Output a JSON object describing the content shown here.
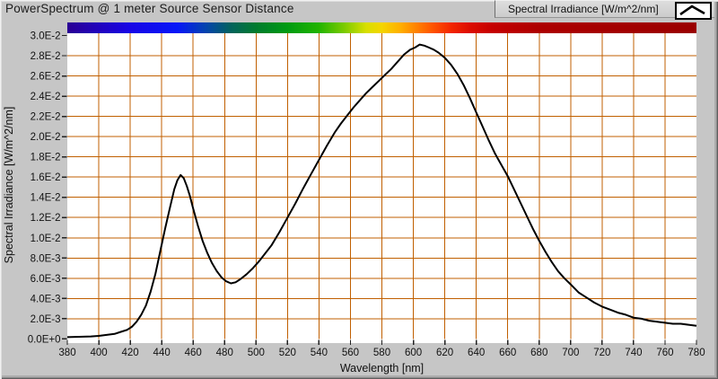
{
  "window": {
    "title": "PowerSpectrum @ 1 meter Source Sensor Distance"
  },
  "legend": {
    "label": "Spectral Irradiance [W/m^2/nm]",
    "sample_icon": "line-sample-caret-icon"
  },
  "colors": {
    "window_bg": "#c6c6c6",
    "plot_bg": "#ffffff",
    "grid": "#c05f00",
    "curve": "#000000",
    "tick": "#222222",
    "text": "#111111"
  },
  "chart_data": {
    "type": "line",
    "title": "PowerSpectrum @ 1 meter Source Sensor Distance",
    "xlabel": "Wavelength [nm]",
    "ylabel": "Spectral Irradiance [W/m^2/nm]",
    "xlim": [
      380,
      780
    ],
    "ylim": [
      0,
      0.03
    ],
    "grid": true,
    "legend_position": "top-right",
    "x_ticks": [
      {
        "value": 380,
        "label": "380"
      },
      {
        "value": 400,
        "label": "400"
      },
      {
        "value": 420,
        "label": "420"
      },
      {
        "value": 440,
        "label": "440"
      },
      {
        "value": 460,
        "label": "460"
      },
      {
        "value": 480,
        "label": "480"
      },
      {
        "value": 500,
        "label": "500"
      },
      {
        "value": 520,
        "label": "520"
      },
      {
        "value": 540,
        "label": "540"
      },
      {
        "value": 560,
        "label": "560"
      },
      {
        "value": 580,
        "label": "580"
      },
      {
        "value": 600,
        "label": "600"
      },
      {
        "value": 620,
        "label": "620"
      },
      {
        "value": 640,
        "label": "640"
      },
      {
        "value": 660,
        "label": "660"
      },
      {
        "value": 680,
        "label": "680"
      },
      {
        "value": 700,
        "label": "700"
      },
      {
        "value": 720,
        "label": "720"
      },
      {
        "value": 740,
        "label": "740"
      },
      {
        "value": 760,
        "label": "760"
      },
      {
        "value": 780,
        "label": "780"
      }
    ],
    "y_ticks": [
      {
        "value": 0.0,
        "label": "0.0E+0"
      },
      {
        "value": 0.002,
        "label": "2.0E-3"
      },
      {
        "value": 0.004,
        "label": "4.0E-3"
      },
      {
        "value": 0.006,
        "label": "6.0E-3"
      },
      {
        "value": 0.008,
        "label": "8.0E-3"
      },
      {
        "value": 0.01,
        "label": "1.0E-2"
      },
      {
        "value": 0.012,
        "label": "1.2E-2"
      },
      {
        "value": 0.014,
        "label": "1.4E-2"
      },
      {
        "value": 0.016,
        "label": "1.6E-2"
      },
      {
        "value": 0.018,
        "label": "1.8E-2"
      },
      {
        "value": 0.02,
        "label": "2.0E-2"
      },
      {
        "value": 0.022,
        "label": "2.2E-2"
      },
      {
        "value": 0.024,
        "label": "2.4E-2"
      },
      {
        "value": 0.026,
        "label": "2.6E-2"
      },
      {
        "value": 0.028,
        "label": "2.8E-2"
      },
      {
        "value": 0.03,
        "label": "3.0E-2"
      }
    ],
    "colorbar": {
      "description": "visible-spectrum color ramp along top of plot, 380-780 nm",
      "stops": [
        {
          "pos": 0.0,
          "color": "#2a0094"
        },
        {
          "pos": 0.1,
          "color": "#1805e6"
        },
        {
          "pos": 0.175,
          "color": "#0617f8"
        },
        {
          "pos": 0.22,
          "color": "#0343ae"
        },
        {
          "pos": 0.26,
          "color": "#02635c"
        },
        {
          "pos": 0.3,
          "color": "#017b2e"
        },
        {
          "pos": 0.35,
          "color": "#009b12"
        },
        {
          "pos": 0.4,
          "color": "#22b400"
        },
        {
          "pos": 0.44,
          "color": "#7bcb00"
        },
        {
          "pos": 0.475,
          "color": "#d8df00"
        },
        {
          "pos": 0.5,
          "color": "#f4d500"
        },
        {
          "pos": 0.53,
          "color": "#ffae00"
        },
        {
          "pos": 0.55,
          "color": "#ff8a00"
        },
        {
          "pos": 0.58,
          "color": "#ff5500"
        },
        {
          "pos": 0.61,
          "color": "#f32600"
        },
        {
          "pos": 0.64,
          "color": "#dc0c00"
        },
        {
          "pos": 0.675,
          "color": "#c60000"
        },
        {
          "pos": 0.75,
          "color": "#ad0000"
        },
        {
          "pos": 1.0,
          "color": "#9a0000"
        }
      ]
    },
    "series": [
      {
        "name": "Spectral Irradiance [W/m^2/nm]",
        "points": [
          [
            380,
            0.00018
          ],
          [
            385,
            0.0002
          ],
          [
            390,
            0.00022
          ],
          [
            395,
            0.00025
          ],
          [
            400,
            0.0003
          ],
          [
            405,
            0.0004
          ],
          [
            410,
            0.0005
          ],
          [
            414,
            0.0007
          ],
          [
            418,
            0.0009
          ],
          [
            421,
            0.0012
          ],
          [
            424,
            0.0017
          ],
          [
            427,
            0.0024
          ],
          [
            430,
            0.0033
          ],
          [
            433,
            0.0047
          ],
          [
            436,
            0.0064
          ],
          [
            439,
            0.0086
          ],
          [
            442,
            0.0108
          ],
          [
            445,
            0.0128
          ],
          [
            448,
            0.0148
          ],
          [
            450,
            0.0157
          ],
          [
            452,
            0.0162
          ],
          [
            454,
            0.0159
          ],
          [
            456,
            0.0151
          ],
          [
            458,
            0.0141
          ],
          [
            460,
            0.0129
          ],
          [
            463,
            0.0112
          ],
          [
            466,
            0.0097
          ],
          [
            469,
            0.0085
          ],
          [
            472,
            0.0075
          ],
          [
            475,
            0.0067
          ],
          [
            478,
            0.0061
          ],
          [
            481,
            0.0057
          ],
          [
            484,
            0.0055
          ],
          [
            487,
            0.0056
          ],
          [
            490,
            0.0059
          ],
          [
            494,
            0.0064
          ],
          [
            498,
            0.007
          ],
          [
            502,
            0.0077
          ],
          [
            506,
            0.0085
          ],
          [
            510,
            0.0093
          ],
          [
            515,
            0.0106
          ],
          [
            520,
            0.012
          ],
          [
            525,
            0.0134
          ],
          [
            530,
            0.0149
          ],
          [
            535,
            0.0163
          ],
          [
            540,
            0.0177
          ],
          [
            545,
            0.0191
          ],
          [
            550,
            0.0204
          ],
          [
            554,
            0.0213
          ],
          [
            558,
            0.0221
          ],
          [
            562,
            0.0229
          ],
          [
            566,
            0.0236
          ],
          [
            570,
            0.0243
          ],
          [
            574,
            0.0249
          ],
          [
            578,
            0.0255
          ],
          [
            582,
            0.0261
          ],
          [
            586,
            0.0267
          ],
          [
            590,
            0.0274
          ],
          [
            594,
            0.0281
          ],
          [
            598,
            0.0286
          ],
          [
            601,
            0.0288
          ],
          [
            604,
            0.0291
          ],
          [
            607,
            0.029
          ],
          [
            610,
            0.0288
          ],
          [
            613,
            0.0286
          ],
          [
            616,
            0.0283
          ],
          [
            620,
            0.0278
          ],
          [
            624,
            0.0271
          ],
          [
            628,
            0.0262
          ],
          [
            632,
            0.0251
          ],
          [
            636,
            0.0238
          ],
          [
            640,
            0.0224
          ],
          [
            644,
            0.021
          ],
          [
            648,
            0.0196
          ],
          [
            652,
            0.0183
          ],
          [
            656,
            0.0172
          ],
          [
            660,
            0.0161
          ],
          [
            664,
            0.0148
          ],
          [
            668,
            0.0135
          ],
          [
            672,
            0.0122
          ],
          [
            676,
            0.0109
          ],
          [
            680,
            0.0097
          ],
          [
            684,
            0.0086
          ],
          [
            688,
            0.0076
          ],
          [
            692,
            0.0067
          ],
          [
            696,
            0.006
          ],
          [
            700,
            0.0054
          ],
          [
            705,
            0.0046
          ],
          [
            710,
            0.0041
          ],
          [
            715,
            0.0036
          ],
          [
            720,
            0.0032
          ],
          [
            725,
            0.0029
          ],
          [
            730,
            0.0026
          ],
          [
            735,
            0.0024
          ],
          [
            740,
            0.0021
          ],
          [
            745,
            0.002
          ],
          [
            750,
            0.0018
          ],
          [
            755,
            0.0017
          ],
          [
            760,
            0.0016
          ],
          [
            765,
            0.0015
          ],
          [
            770,
            0.0015
          ],
          [
            775,
            0.0014
          ],
          [
            780,
            0.0013
          ]
        ]
      }
    ]
  }
}
